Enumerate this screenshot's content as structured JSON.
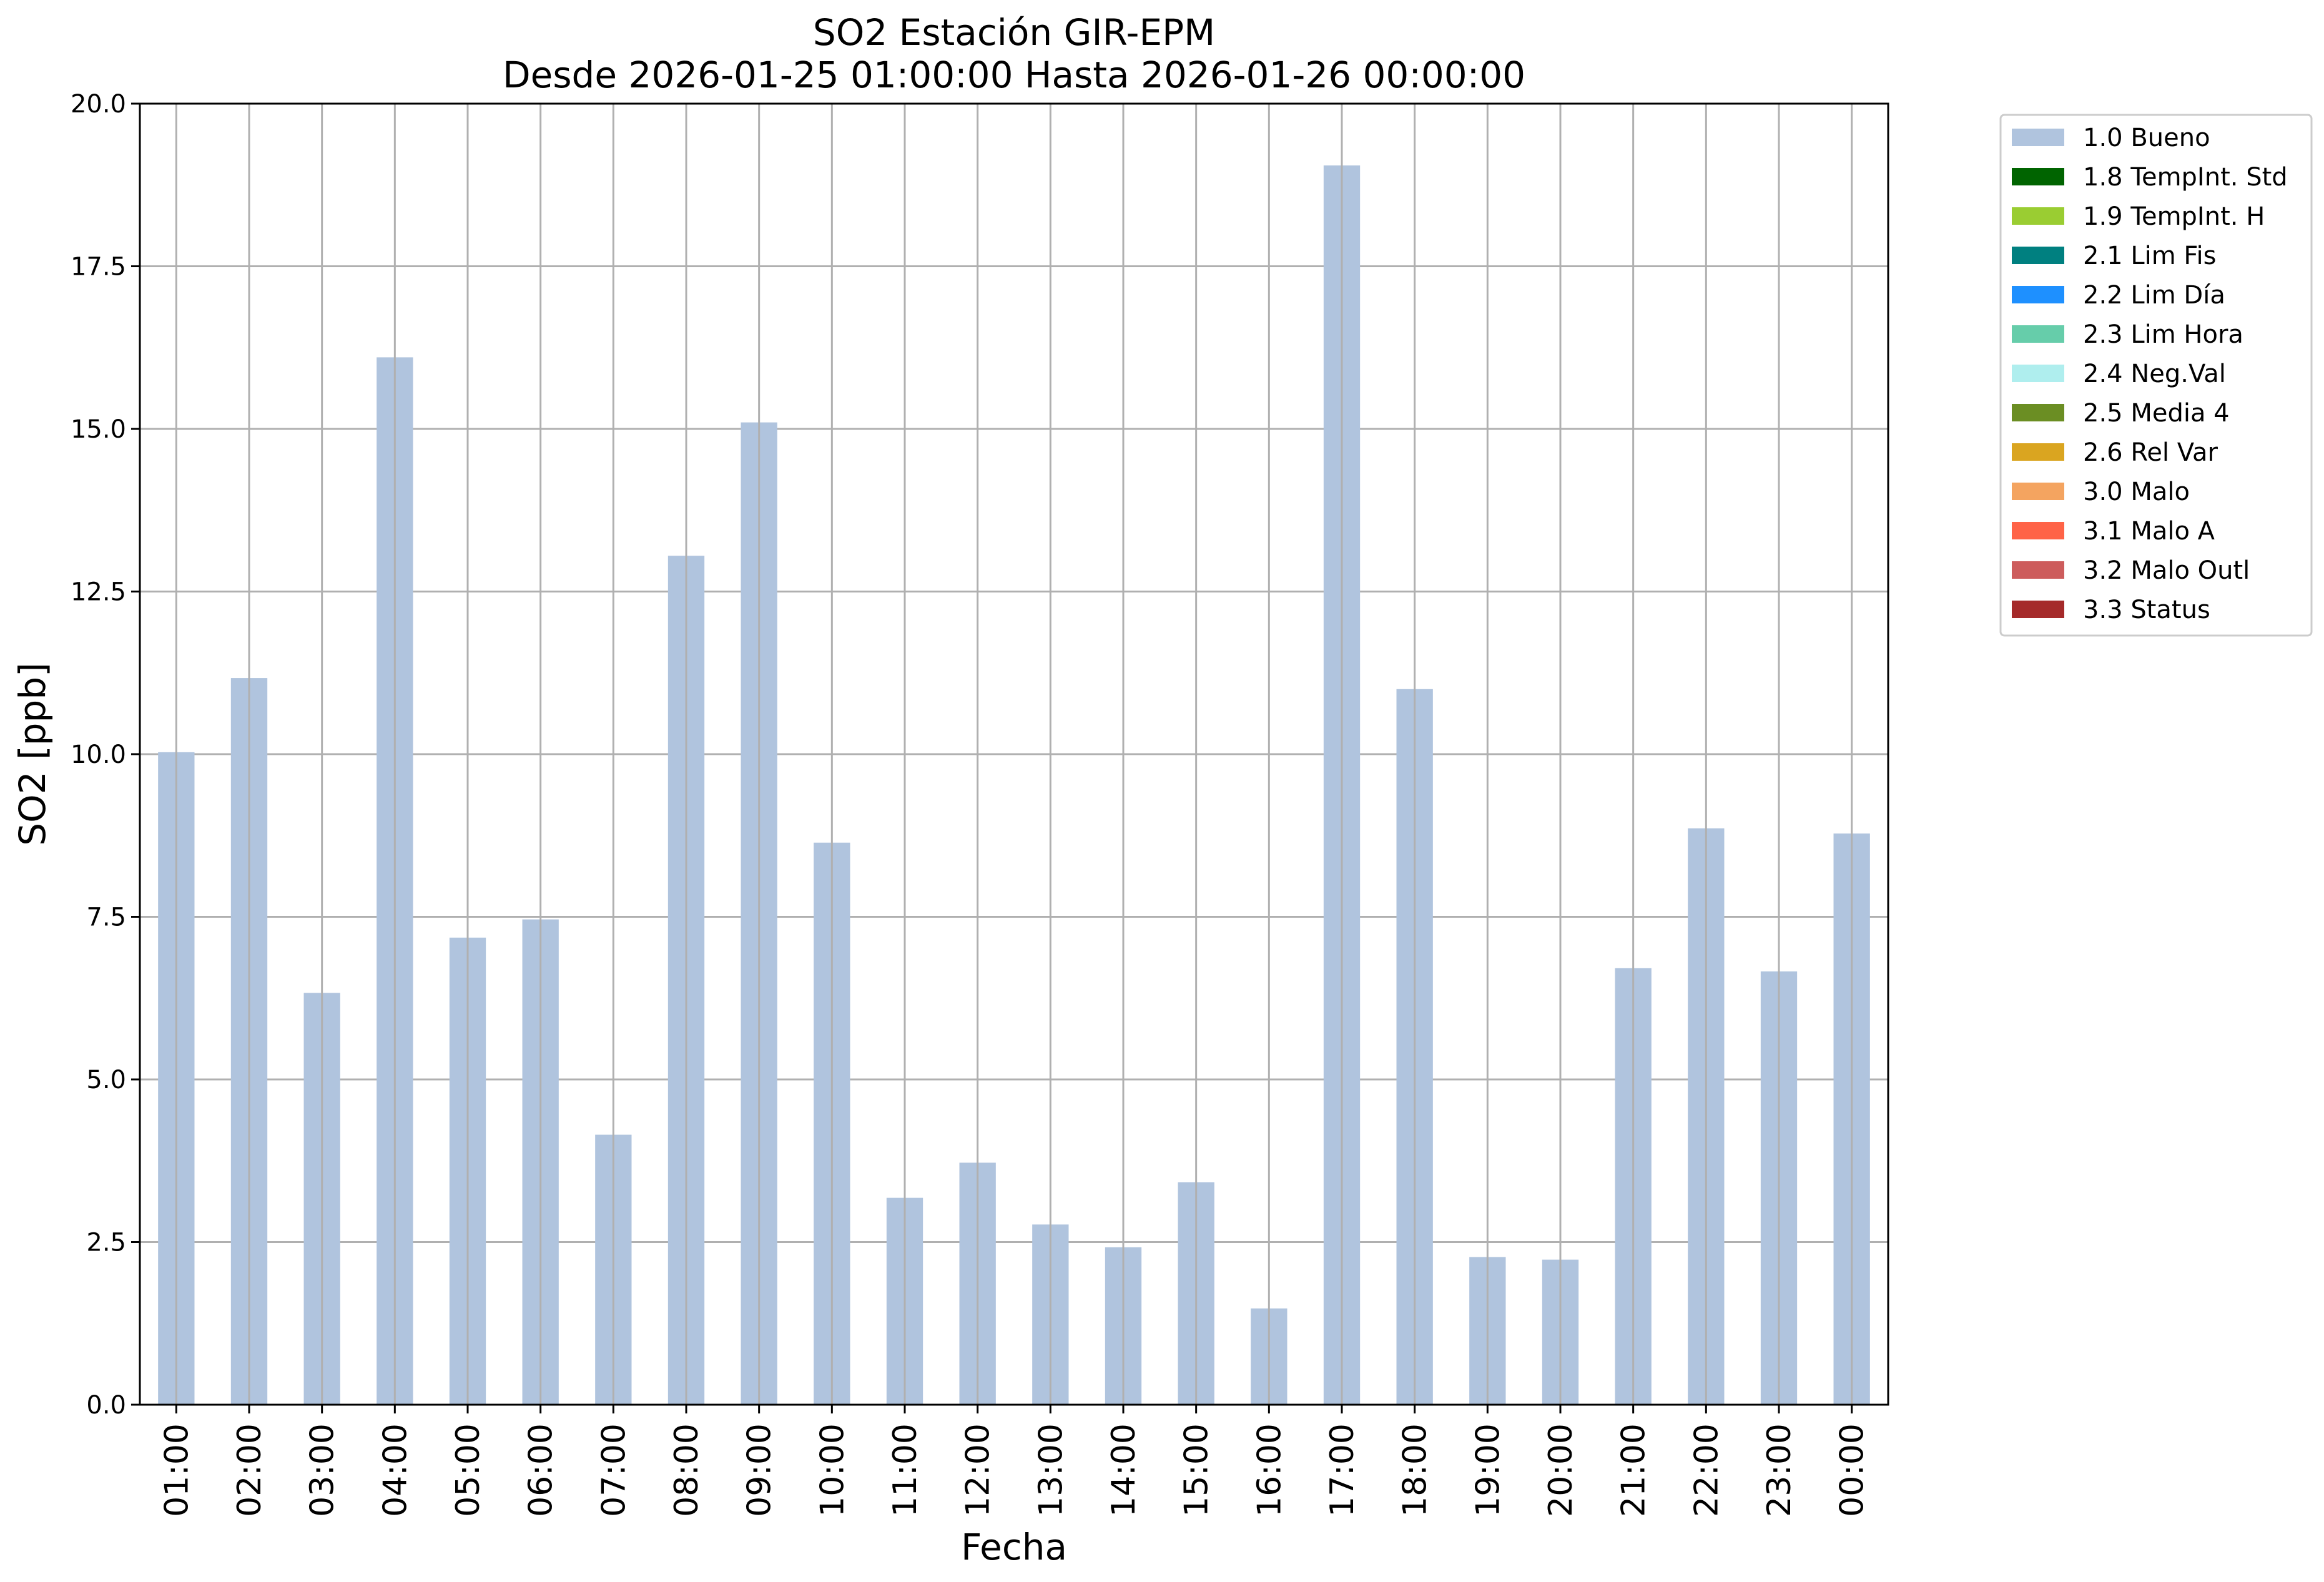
{
  "chart_data": {
    "type": "bar",
    "title": "SO2 Estación GIR-EPM",
    "subtitle": "Desde 2026-01-25 01:00:00 Hasta 2026-01-26 00:00:00",
    "xlabel": "Fecha",
    "ylabel": "SO2 [ppb]",
    "ylim": [
      0,
      20
    ],
    "yticks": [
      "0.0",
      "2.5",
      "5.0",
      "7.5",
      "10.0",
      "12.5",
      "15.0",
      "17.5",
      "20.0"
    ],
    "grid": true,
    "legend_position": "outside-top-right",
    "categories": [
      "01:00",
      "02:00",
      "03:00",
      "04:00",
      "05:00",
      "06:00",
      "07:00",
      "08:00",
      "09:00",
      "10:00",
      "11:00",
      "12:00",
      "13:00",
      "14:00",
      "15:00",
      "16:00",
      "17:00",
      "18:00",
      "19:00",
      "20:00",
      "21:00",
      "22:00",
      "23:00",
      "00:00"
    ],
    "series": [
      {
        "name": "1.0 Bueno",
        "color": "#b0c4de",
        "values": [
          10.03,
          11.17,
          6.33,
          16.1,
          7.18,
          7.46,
          4.15,
          13.05,
          15.1,
          8.64,
          3.18,
          3.72,
          2.77,
          2.42,
          3.42,
          1.48,
          19.05,
          11.0,
          2.27,
          2.23,
          6.71,
          8.86,
          6.66,
          8.78
        ]
      }
    ],
    "legend": [
      {
        "label": "1.0 Bueno",
        "color": "#b0c4de"
      },
      {
        "label": "1.8 TempInt. Std",
        "color": "#006400"
      },
      {
        "label": "1.9 TempInt. H",
        "color": "#9acd32"
      },
      {
        "label": "2.1 Lim Fis",
        "color": "#008080"
      },
      {
        "label": "2.2 Lim Día",
        "color": "#1e90ff"
      },
      {
        "label": "2.3 Lim Hora",
        "color": "#66cdaa"
      },
      {
        "label": "2.4 Neg.Val",
        "color": "#afeeee"
      },
      {
        "label": "2.5 Media 4",
        "color": "#6b8e23"
      },
      {
        "label": "2.6 Rel Var",
        "color": "#daa520"
      },
      {
        "label": "3.0 Malo",
        "color": "#f4a460"
      },
      {
        "label": "3.1 Malo A",
        "color": "#ff6347"
      },
      {
        "label": "3.2 Malo Outl",
        "color": "#cd5c5c"
      },
      {
        "label": "3.3 Status",
        "color": "#a52a2a"
      }
    ]
  }
}
